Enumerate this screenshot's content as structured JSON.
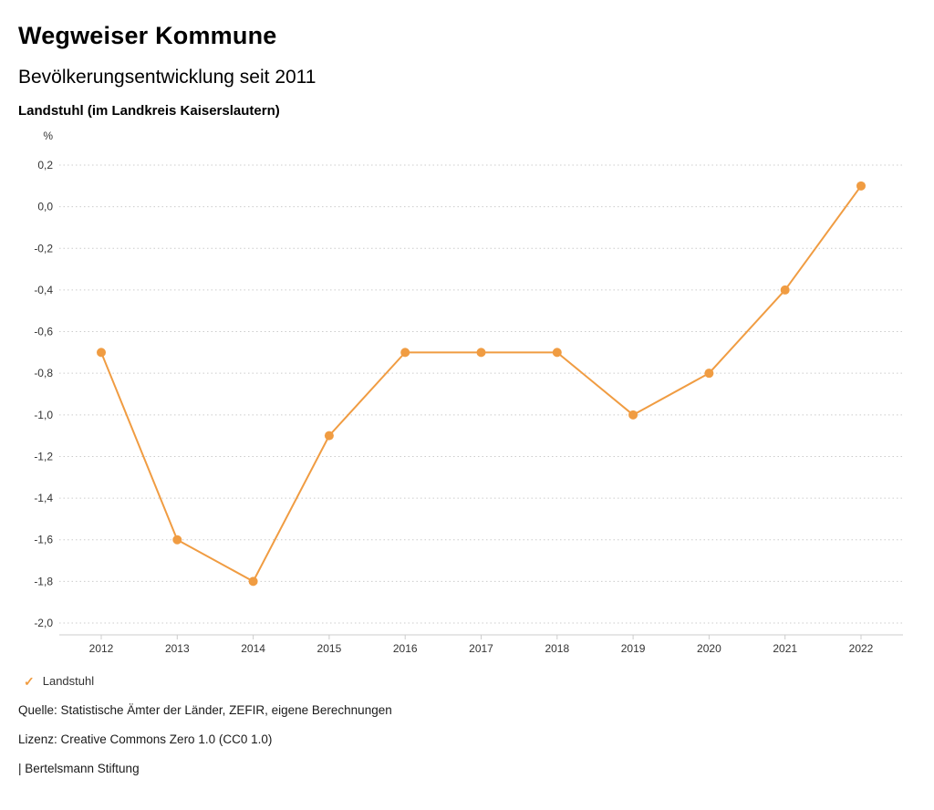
{
  "header": {
    "title": "Wegweiser Kommune",
    "subtitle": "Bevölkerungsentwicklung seit 2011",
    "location": "Landstuhl (im Landkreis Kaiserslautern)"
  },
  "chart_data": {
    "type": "line",
    "title": "Bevölkerungsentwicklung seit 2011",
    "unit_label": "%",
    "categories": [
      "2012",
      "2013",
      "2014",
      "2015",
      "2016",
      "2017",
      "2018",
      "2019",
      "2020",
      "2021",
      "2022"
    ],
    "series": [
      {
        "name": "Landstuhl",
        "values": [
          -0.7,
          -1.6,
          -1.8,
          -1.1,
          -0.7,
          -0.7,
          -0.7,
          -1.0,
          -0.8,
          -0.4,
          0.1
        ]
      }
    ],
    "xlabel": "",
    "ylabel": "%",
    "ylim": [
      -2.0,
      0.2
    ],
    "ytick_step": 0.2,
    "grid": true,
    "line_color": "#f09c42",
    "grid_color": "#cccccc",
    "axis_text_color": "#333333",
    "legend_position": "bottom"
  },
  "legend": {
    "items": [
      {
        "label": "Landstuhl",
        "color": "#f09c42",
        "check_icon": "✓"
      }
    ]
  },
  "footer": {
    "source": "Quelle: Statistische Ämter der Länder, ZEFIR, eigene Berechnungen",
    "license": "Lizenz: Creative Commons Zero 1.0 (CC0 1.0)",
    "attribution": "| Bertelsmann Stiftung"
  }
}
